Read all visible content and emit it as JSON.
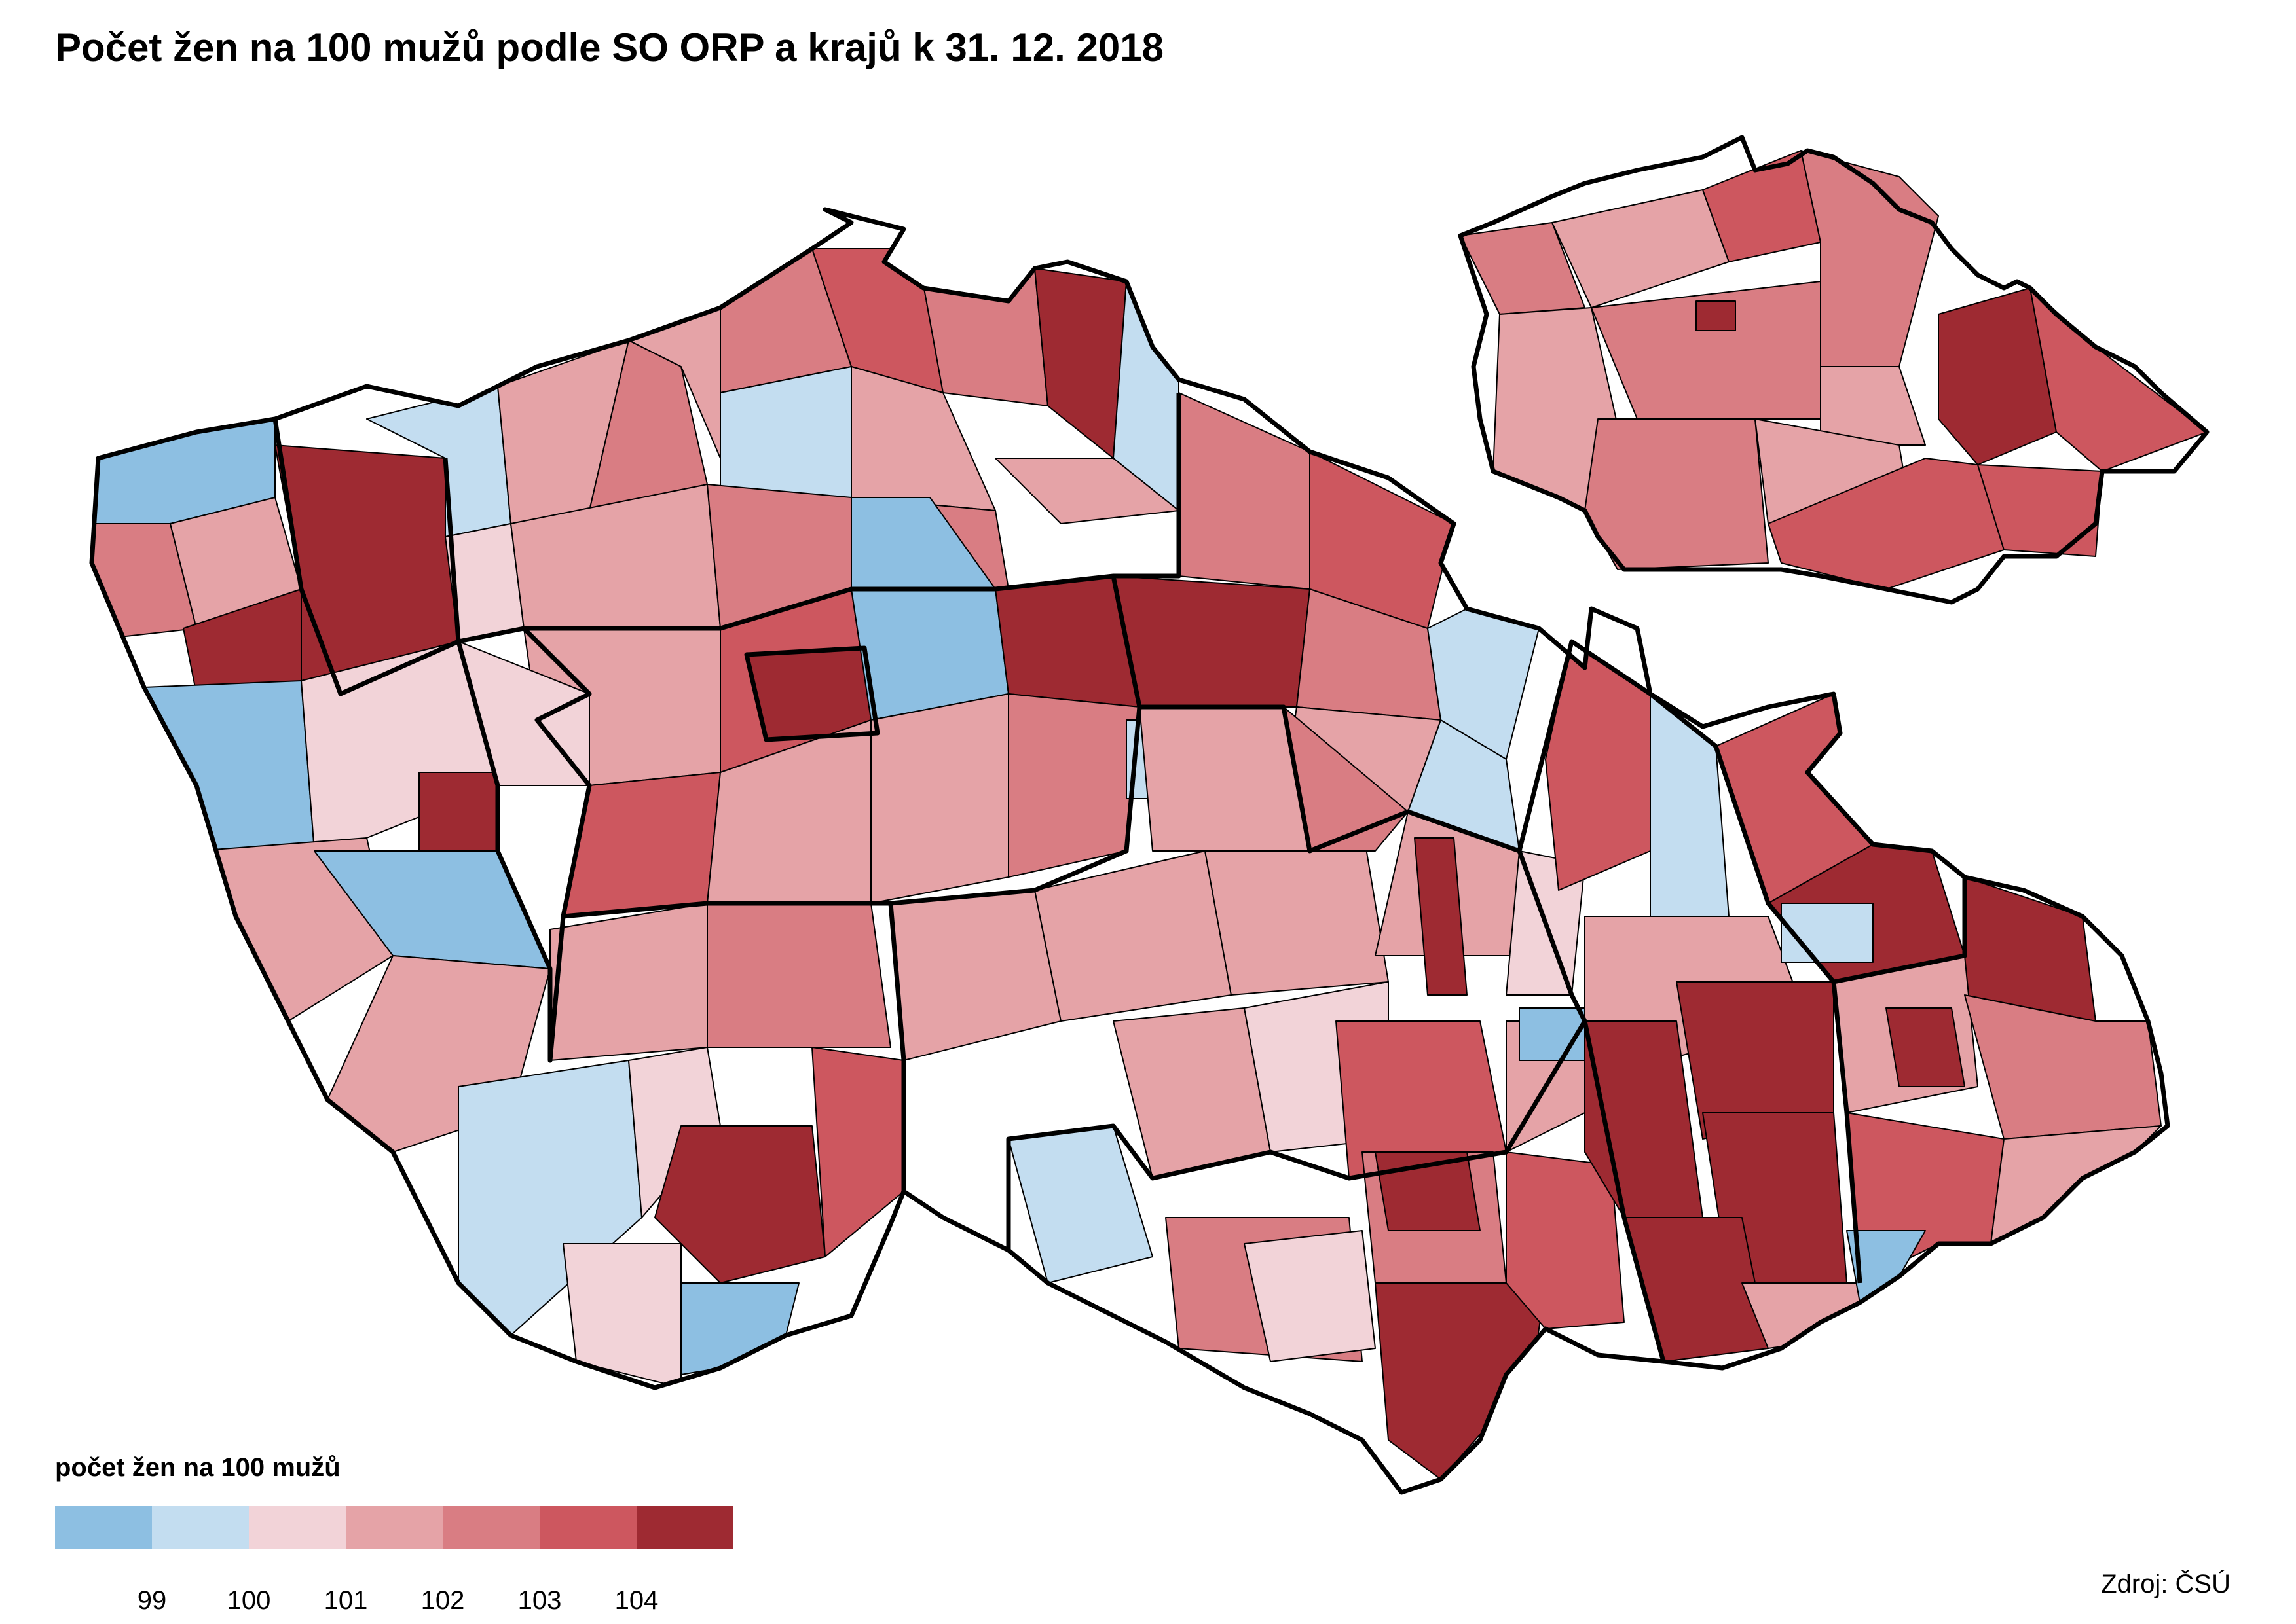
{
  "title": "Počet žen na 100 mužů podle SO ORP a krajů k 31. 12. 2018",
  "legend": {
    "title": "počet žen na 100 mužů",
    "colors": [
      "#8dbfe2",
      "#c3ddf0",
      "#f2d3d8",
      "#e5a3a7",
      "#d97d83",
      "#cd575f",
      "#9e2a32"
    ],
    "ticks": [
      "99",
      "100",
      "101",
      "102",
      "103",
      "104"
    ]
  },
  "source": "Zdroj: ČSÚ"
}
